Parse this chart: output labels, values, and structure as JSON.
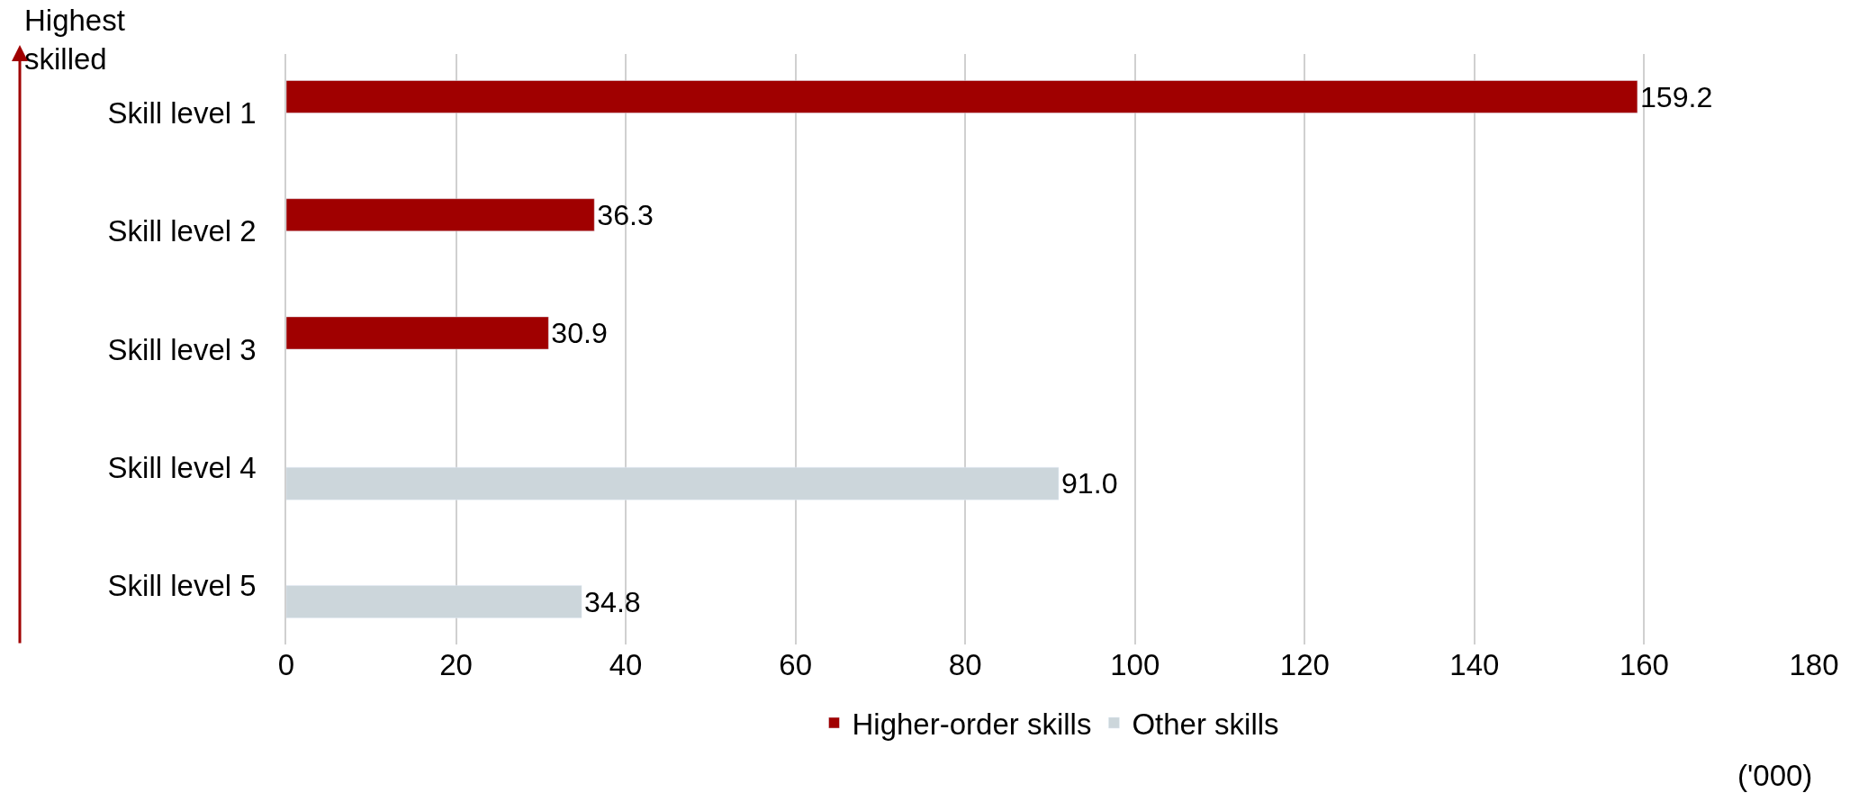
{
  "chart_data": {
    "type": "bar",
    "orientation": "horizontal",
    "categories": [
      "Skill level 1",
      "Skill level 2",
      "Skill level 3",
      "Skill level 4",
      "Skill level 5"
    ],
    "series": [
      {
        "name": "Higher-order skills",
        "color": "#a00000",
        "values": [
          159.2,
          36.3,
          30.9,
          null,
          null
        ],
        "value_labels": [
          "159.2",
          "36.3",
          "30.9",
          null,
          null
        ]
      },
      {
        "name": "Other skills",
        "color": "#ccd6db",
        "values": [
          null,
          null,
          null,
          91.0,
          34.8
        ],
        "value_labels": [
          null,
          null,
          null,
          "91.0",
          "34.8"
        ]
      }
    ],
    "xlim": [
      0,
      180
    ],
    "xticks": [
      0,
      20,
      40,
      60,
      80,
      100,
      120,
      140,
      160,
      180
    ],
    "xlabel": "('000)",
    "annotations": [
      "Highest\nskilled"
    ],
    "grid": "x",
    "legend": "bottom"
  }
}
